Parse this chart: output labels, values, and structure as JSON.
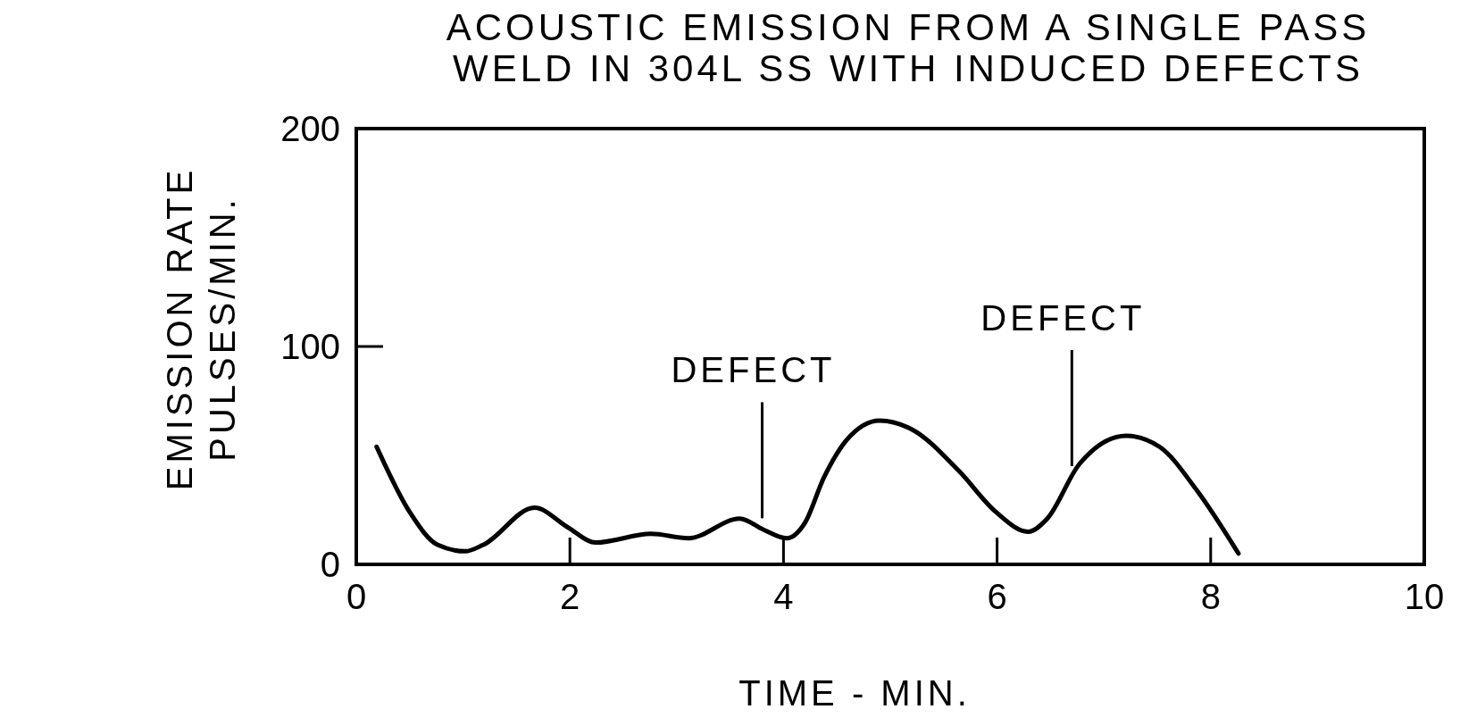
{
  "chart_data": {
    "type": "line",
    "title": "ACOUSTIC EMISSION FROM A SINGLE PASS\nWELD IN 304L SS WITH INDUCED DEFECTS",
    "xlabel": "TIME - MIN.",
    "ylabel": "EMISSION RATE\nPULSES/MIN.",
    "x": [
      0.19,
      0.5,
      0.76,
      1.02,
      1.19,
      1.67,
      1.98,
      2.24,
      2.76,
      3.11,
      3.59,
      3.81,
      4.03,
      4.2,
      4.38,
      4.59,
      4.9,
      5.2,
      5.64,
      5.99,
      6.29,
      6.47,
      6.77,
      7.21,
      7.52,
      7.87,
      8.26
    ],
    "series": [
      {
        "color": "#000000",
        "values": [
          54,
          24,
          9,
          6,
          9,
          26,
          17,
          10,
          14,
          12,
          21,
          16,
          12,
          19,
          40,
          57,
          66,
          62,
          43,
          24,
          15,
          21,
          46,
          59,
          54,
          34,
          5
        ]
      }
    ],
    "xlim": [
      0,
      10
    ],
    "ylim": [
      0,
      200
    ],
    "xticks": [
      0,
      2,
      4,
      6,
      8,
      10
    ],
    "yticks": [
      0,
      100,
      200
    ],
    "grid": false,
    "marker": "none",
    "line_style": "solid",
    "ref_lines": [
      {
        "axis": "x",
        "value": 3.8,
        "label": "DEFECT"
      },
      {
        "axis": "x",
        "value": 6.7,
        "label": "DEFECT"
      }
    ]
  }
}
